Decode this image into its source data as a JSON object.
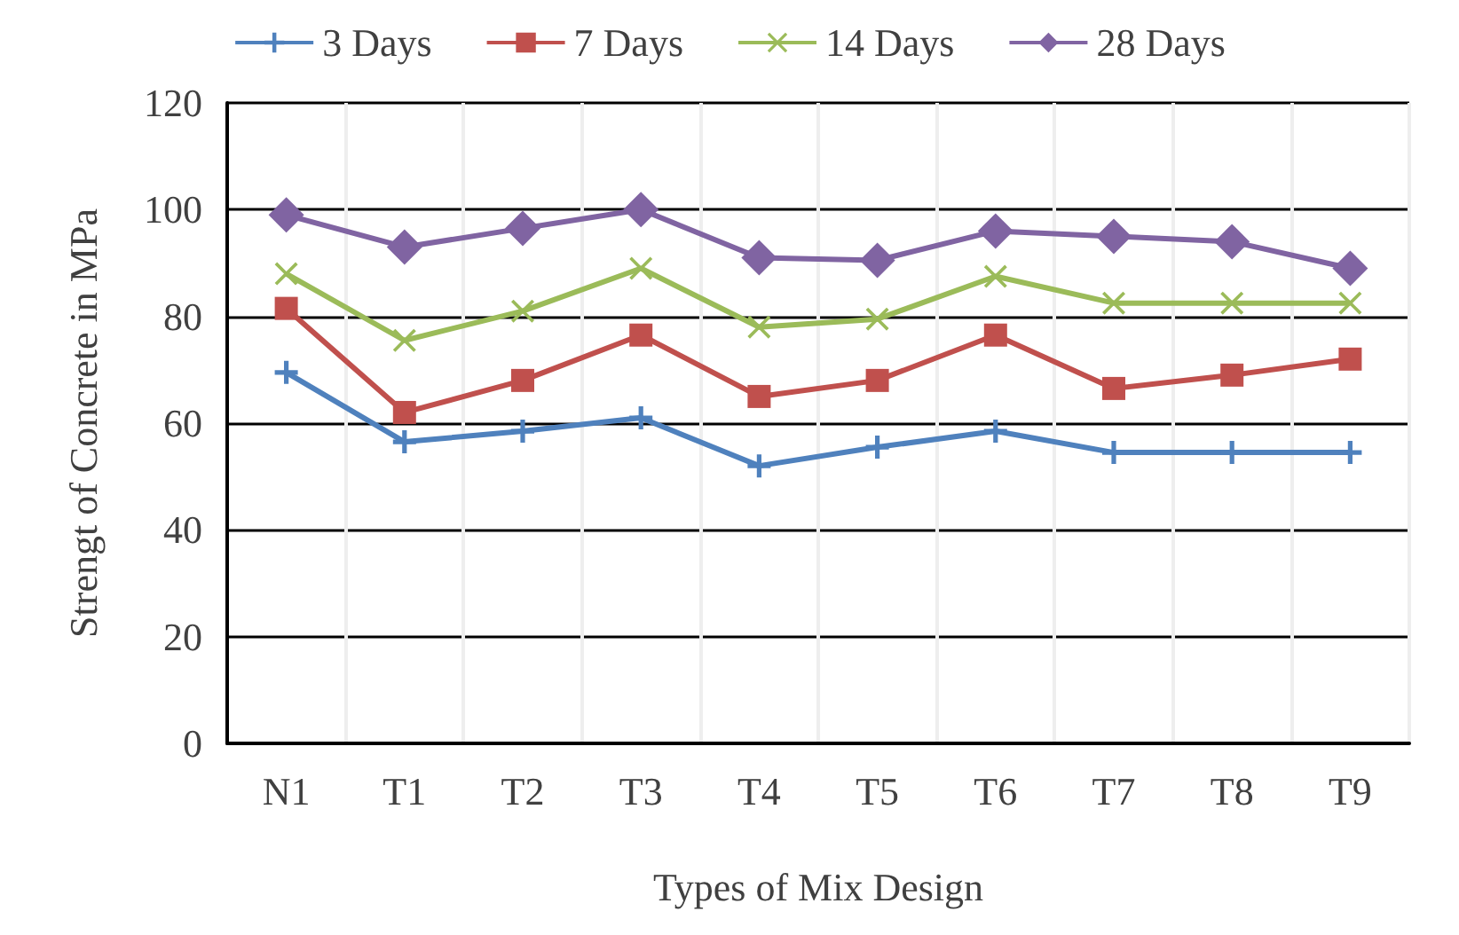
{
  "chart_data": {
    "type": "line",
    "xlabel": "Types of Mix Design",
    "ylabel": "Strengt of Concrete in MPa",
    "categories": [
      "N1",
      "T1",
      "T2",
      "T3",
      "T4",
      "T5",
      "T6",
      "T7",
      "T8",
      "T9"
    ],
    "series": [
      {
        "name": "3 Days",
        "color": "#4f81bd",
        "marker": "cross",
        "values": [
          69.5,
          56.5,
          58.5,
          61,
          52,
          55.5,
          58.5,
          54.5,
          54.5,
          54.5
        ]
      },
      {
        "name": "7 Days",
        "color": "#c0504d",
        "marker": "square",
        "values": [
          81.5,
          62,
          68,
          76.5,
          65,
          68,
          76.5,
          66.5,
          69,
          72
        ]
      },
      {
        "name": "14 Days",
        "color": "#9bbb59",
        "marker": "cross",
        "values": [
          88,
          75.5,
          81,
          89,
          78,
          79.5,
          87.5,
          82.5,
          82.5,
          82.5
        ]
      },
      {
        "name": "28 Days",
        "color": "#8064a2",
        "marker": "diamond",
        "values": [
          99,
          93,
          96.5,
          100,
          91,
          90.5,
          96,
          95,
          94,
          89
        ]
      }
    ],
    "ylim": [
      0,
      120
    ],
    "yticks": [
      0,
      20,
      40,
      60,
      80,
      100,
      120
    ],
    "grid": true,
    "legend": "top",
    "line_style": "solid"
  }
}
